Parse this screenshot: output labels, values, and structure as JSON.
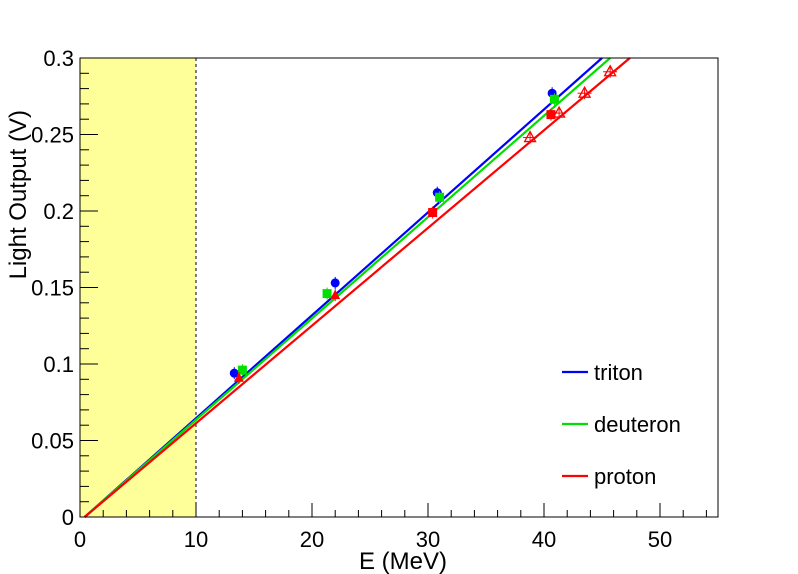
{
  "chart_data": {
    "type": "scatter",
    "xlabel": "E (MeV)",
    "ylabel": "Light Output (V)",
    "xlim": [
      0,
      55
    ],
    "ylim": [
      0,
      0.3
    ],
    "x_ticks": [
      0,
      10,
      20,
      30,
      40,
      50
    ],
    "y_ticks": [
      0,
      0.05,
      0.1,
      0.15,
      0.2,
      0.25,
      0.3
    ],
    "x_tick_labels": [
      "0",
      "10",
      "20",
      "30",
      "40",
      "50"
    ],
    "y_tick_labels": [
      "0",
      "0.05",
      "0.1",
      "0.15",
      "0.2",
      "0.25",
      "0.3"
    ],
    "grid": false,
    "legend_position": "bottom-right",
    "shaded_region": {
      "x": [
        0,
        10
      ],
      "color": "#ffff99"
    },
    "vertical_line": {
      "x": 10,
      "style": "dashed"
    },
    "series": [
      {
        "name": "triton",
        "color": "#0000ff",
        "fit_line": {
          "x": [
            0.4,
            45.0
          ],
          "y": [
            0,
            0.3
          ]
        },
        "points": [
          {
            "x": 13.3,
            "y": 0.094,
            "marker": "circle"
          },
          {
            "x": 22.0,
            "y": 0.153,
            "marker": "circle"
          },
          {
            "x": 30.8,
            "y": 0.212,
            "marker": "circle"
          },
          {
            "x": 40.7,
            "y": 0.277,
            "marker": "circle"
          }
        ]
      },
      {
        "name": "deuteron",
        "color": "#00e000",
        "fit_line": {
          "x": [
            0.4,
            45.7
          ],
          "y": [
            0,
            0.3
          ]
        },
        "points": [
          {
            "x": 14.0,
            "y": 0.096,
            "marker": "square"
          },
          {
            "x": 21.3,
            "y": 0.146,
            "marker": "square"
          },
          {
            "x": 31.0,
            "y": 0.209,
            "marker": "square"
          },
          {
            "x": 40.9,
            "y": 0.273,
            "marker": "square"
          }
        ]
      },
      {
        "name": "proton",
        "color": "#ff0000",
        "fit_line": {
          "x": [
            0.4,
            47.4
          ],
          "y": [
            0,
            0.3
          ]
        },
        "points": [
          {
            "x": 13.7,
            "y": 0.091,
            "marker": "triangle"
          },
          {
            "x": 22.0,
            "y": 0.145,
            "marker": "triangle"
          },
          {
            "x": 30.4,
            "y": 0.199,
            "marker": "square"
          },
          {
            "x": 40.6,
            "y": 0.263,
            "marker": "square"
          },
          {
            "x": 38.8,
            "y": 0.248,
            "marker": "open-triangle"
          },
          {
            "x": 41.3,
            "y": 0.264,
            "marker": "open-triangle"
          },
          {
            "x": 43.5,
            "y": 0.277,
            "marker": "open-triangle"
          },
          {
            "x": 45.7,
            "y": 0.291,
            "marker": "open-triangle"
          }
        ]
      }
    ]
  }
}
